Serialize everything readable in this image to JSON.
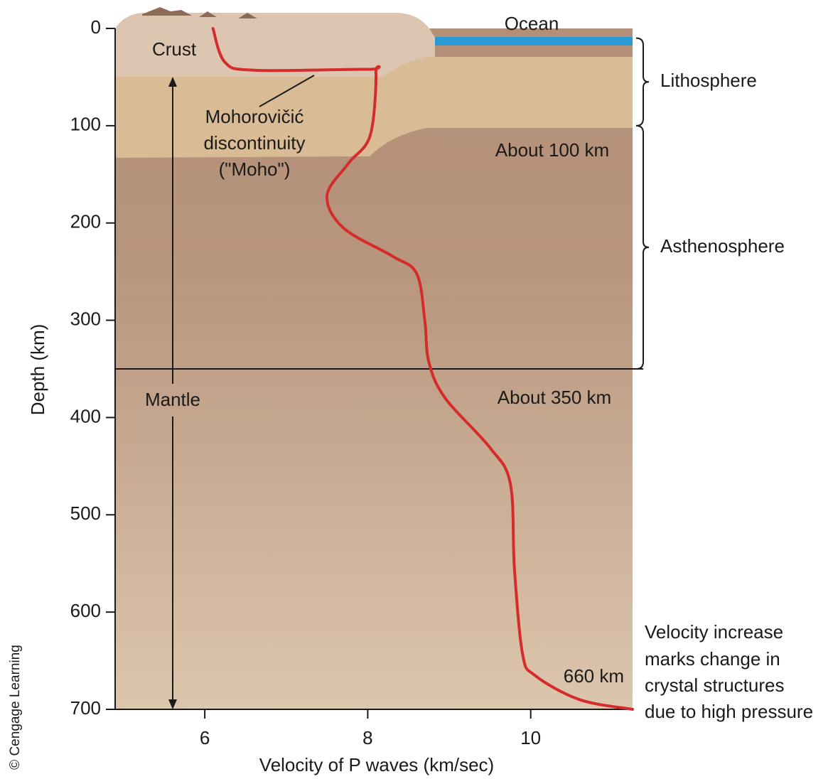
{
  "chart_data": {
    "type": "line",
    "x_label": "Velocity of P waves (km/sec)",
    "y_label": "Depth (km)",
    "x": [
      6.1,
      6.25,
      6.62,
      8.0,
      8.1,
      8.03,
      7.76,
      7.5,
      7.7,
      8.3,
      8.6,
      8.7,
      8.75,
      8.95,
      9.5,
      9.75,
      9.8,
      9.9,
      10.05,
      10.6,
      11.25
    ],
    "values": [
      0,
      35,
      43,
      42,
      45,
      110,
      139,
      172,
      205,
      234,
      252,
      300,
      343,
      380,
      431,
      468,
      555,
      643,
      665,
      690,
      700
    ],
    "color": "#d62b2b",
    "xlim": [
      4.9,
      11.25
    ],
    "xticks": [
      6,
      8,
      10
    ],
    "ylim": [
      0,
      700
    ],
    "yticks": [
      0,
      100,
      200,
      300,
      400,
      500,
      600,
      700
    ],
    "y_inverted": true,
    "reference_lines": [
      {
        "value": 350,
        "label": "About 350 km"
      }
    ],
    "brackets": [
      {
        "label": "Lithosphere",
        "range": [
          10,
          100
        ]
      },
      {
        "label": "Asthenosphere",
        "range": [
          100,
          350
        ]
      }
    ],
    "annotations": {
      "ocean": "Ocean",
      "crust": "Crust",
      "moho": [
        "Mohorovičić",
        "discontinuity",
        "(\"Moho\")"
      ],
      "about_100": "About 100 km",
      "mantle": "Mantle",
      "km_660": "660 km",
      "velocity_note": [
        "Velocity increase",
        "marks change in",
        "crystal structures",
        "due to high pressure"
      ],
      "credit": "© Cengage Learning"
    }
  }
}
